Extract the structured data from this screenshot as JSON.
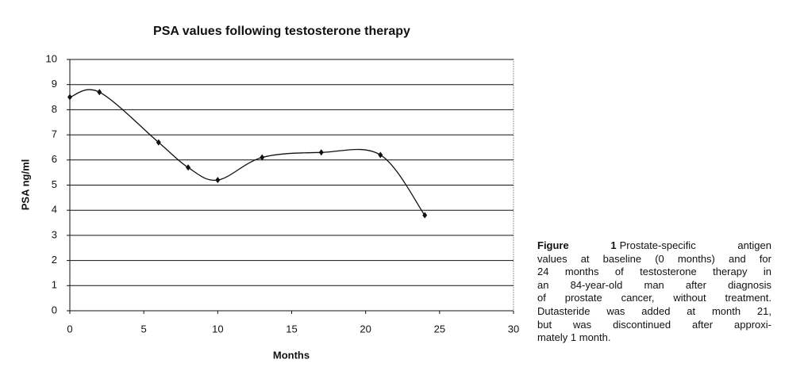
{
  "chart_data": {
    "type": "line",
    "title": "PSA values following testosterone therapy",
    "x_label": "Months",
    "y_label": "PSA ng/ml",
    "x": [
      0,
      2,
      6,
      8,
      10,
      13,
      17,
      21,
      24
    ],
    "series": [
      {
        "color": "#111111",
        "values": [
          8.5,
          8.7,
          6.7,
          5.7,
          5.2,
          6.1,
          6.3,
          6.2,
          3.8
        ]
      }
    ],
    "xlim": [
      0,
      30
    ],
    "xticks": [
      0,
      5,
      10,
      15,
      20,
      25,
      30
    ],
    "ylim": [
      0,
      10
    ],
    "yticks": [
      0,
      1,
      2,
      3,
      4,
      5,
      6,
      7,
      8,
      9,
      10
    ],
    "grid": true,
    "smooth": true
  },
  "caption": {
    "label": "Figure 1",
    "lines": [
      "Prostate-specific antigen",
      "values at baseline (0 months) and for",
      "24 months of testosterone therapy in",
      "an 84-year-old man after diagnosis",
      "of prostate cancer, without treatment.",
      "Dutasteride was added at month 21,",
      "but was discontinued after approxi-",
      "mately 1 month."
    ]
  }
}
